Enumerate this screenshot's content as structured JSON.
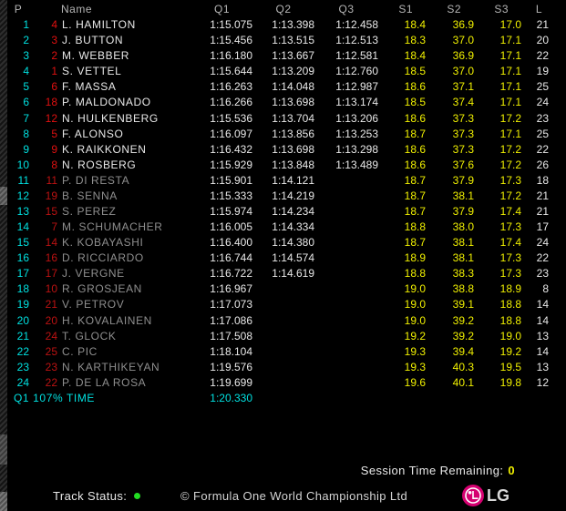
{
  "table": {
    "columns": [
      {
        "key": "pos",
        "label": "P"
      },
      {
        "key": "num",
        "label": ""
      },
      {
        "key": "name",
        "label": "Name"
      },
      {
        "key": "q1",
        "label": "Q1"
      },
      {
        "key": "q2",
        "label": "Q2"
      },
      {
        "key": "q3",
        "label": "Q3"
      },
      {
        "key": "s1",
        "label": "S1"
      },
      {
        "key": "s2",
        "label": "S2"
      },
      {
        "key": "s3",
        "label": "S3"
      },
      {
        "key": "l",
        "label": "L"
      }
    ],
    "rows": [
      {
        "pos": "1",
        "num": "4",
        "name": "L. HAMILTON",
        "q1": "1:15.075",
        "q2": "1:13.398",
        "q3": "1:12.458",
        "s1": "18.4",
        "s2": "36.9",
        "s3": "17.0",
        "l": "21",
        "dim": false
      },
      {
        "pos": "2",
        "num": "3",
        "name": "J. BUTTON",
        "q1": "1:15.456",
        "q2": "1:13.515",
        "q3": "1:12.513",
        "s1": "18.3",
        "s2": "37.0",
        "s3": "17.1",
        "l": "20",
        "dim": false
      },
      {
        "pos": "3",
        "num": "2",
        "name": "M. WEBBER",
        "q1": "1:16.180",
        "q2": "1:13.667",
        "q3": "1:12.581",
        "s1": "18.4",
        "s2": "36.9",
        "s3": "17.1",
        "l": "22",
        "dim": false
      },
      {
        "pos": "4",
        "num": "1",
        "name": "S. VETTEL",
        "q1": "1:15.644",
        "q2": "1:13.209",
        "q3": "1:12.760",
        "s1": "18.5",
        "s2": "37.0",
        "s3": "17.1",
        "l": "19",
        "dim": false
      },
      {
        "pos": "5",
        "num": "6",
        "name": "F. MASSA",
        "q1": "1:16.263",
        "q2": "1:14.048",
        "q3": "1:12.987",
        "s1": "18.6",
        "s2": "37.1",
        "s3": "17.1",
        "l": "25",
        "dim": false
      },
      {
        "pos": "6",
        "num": "18",
        "name": "P. MALDONADO",
        "q1": "1:16.266",
        "q2": "1:13.698",
        "q3": "1:13.174",
        "s1": "18.5",
        "s2": "37.4",
        "s3": "17.1",
        "l": "24",
        "dim": false
      },
      {
        "pos": "7",
        "num": "12",
        "name": "N. HULKENBERG",
        "q1": "1:15.536",
        "q2": "1:13.704",
        "q3": "1:13.206",
        "s1": "18.6",
        "s2": "37.3",
        "s3": "17.2",
        "l": "23",
        "dim": false
      },
      {
        "pos": "8",
        "num": "5",
        "name": "F. ALONSO",
        "q1": "1:16.097",
        "q2": "1:13.856",
        "q3": "1:13.253",
        "s1": "18.7",
        "s2": "37.3",
        "s3": "17.1",
        "l": "25",
        "dim": false
      },
      {
        "pos": "9",
        "num": "9",
        "name": "K. RAIKKONEN",
        "q1": "1:16.432",
        "q2": "1:13.698",
        "q3": "1:13.298",
        "s1": "18.6",
        "s2": "37.3",
        "s3": "17.2",
        "l": "22",
        "dim": false
      },
      {
        "pos": "10",
        "num": "8",
        "name": "N. ROSBERG",
        "q1": "1:15.929",
        "q2": "1:13.848",
        "q3": "1:13.489",
        "s1": "18.6",
        "s2": "37.6",
        "s3": "17.2",
        "l": "26",
        "dim": false
      },
      {
        "pos": "11",
        "num": "11",
        "name": "P. DI RESTA",
        "q1": "1:15.901",
        "q2": "1:14.121",
        "q3": "",
        "s1": "18.7",
        "s2": "37.9",
        "s3": "17.3",
        "l": "18",
        "dim": true
      },
      {
        "pos": "12",
        "num": "19",
        "name": "B. SENNA",
        "q1": "1:15.333",
        "q2": "1:14.219",
        "q3": "",
        "s1": "18.7",
        "s2": "38.1",
        "s3": "17.2",
        "l": "21",
        "dim": true
      },
      {
        "pos": "13",
        "num": "15",
        "name": "S. PEREZ",
        "q1": "1:15.974",
        "q2": "1:14.234",
        "q3": "",
        "s1": "18.7",
        "s2": "37.9",
        "s3": "17.4",
        "l": "21",
        "dim": true
      },
      {
        "pos": "14",
        "num": "7",
        "name": "M. SCHUMACHER",
        "q1": "1:16.005",
        "q2": "1:14.334",
        "q3": "",
        "s1": "18.8",
        "s2": "38.0",
        "s3": "17.3",
        "l": "17",
        "dim": true
      },
      {
        "pos": "15",
        "num": "14",
        "name": "K. KOBAYASHI",
        "q1": "1:16.400",
        "q2": "1:14.380",
        "q3": "",
        "s1": "18.7",
        "s2": "38.1",
        "s3": "17.4",
        "l": "24",
        "dim": true
      },
      {
        "pos": "16",
        "num": "16",
        "name": "D. RICCIARDO",
        "q1": "1:16.744",
        "q2": "1:14.574",
        "q3": "",
        "s1": "18.9",
        "s2": "38.1",
        "s3": "17.3",
        "l": "22",
        "dim": true
      },
      {
        "pos": "17",
        "num": "17",
        "name": "J. VERGNE",
        "q1": "1:16.722",
        "q2": "1:14.619",
        "q3": "",
        "s1": "18.8",
        "s2": "38.3",
        "s3": "17.3",
        "l": "23",
        "dim": true
      },
      {
        "pos": "18",
        "num": "10",
        "name": "R. GROSJEAN",
        "q1": "1:16.967",
        "q2": "",
        "q3": "",
        "s1": "19.0",
        "s2": "38.8",
        "s3": "18.9",
        "l": "8",
        "dim": true
      },
      {
        "pos": "19",
        "num": "21",
        "name": "V. PETROV",
        "q1": "1:17.073",
        "q2": "",
        "q3": "",
        "s1": "19.0",
        "s2": "39.1",
        "s3": "18.8",
        "l": "14",
        "dim": true
      },
      {
        "pos": "20",
        "num": "20",
        "name": "H. KOVALAINEN",
        "q1": "1:17.086",
        "q2": "",
        "q3": "",
        "s1": "19.0",
        "s2": "39.2",
        "s3": "18.8",
        "l": "14",
        "dim": true
      },
      {
        "pos": "21",
        "num": "24",
        "name": "T. GLOCK",
        "q1": "1:17.508",
        "q2": "",
        "q3": "",
        "s1": "19.2",
        "s2": "39.2",
        "s3": "19.0",
        "l": "13",
        "dim": true
      },
      {
        "pos": "22",
        "num": "25",
        "name": "C. PIC",
        "q1": "1:18.104",
        "q2": "",
        "q3": "",
        "s1": "19.3",
        "s2": "39.4",
        "s3": "19.2",
        "l": "14",
        "dim": true
      },
      {
        "pos": "23",
        "num": "23",
        "name": "N. KARTHIKEYAN",
        "q1": "1:19.576",
        "q2": "",
        "q3": "",
        "s1": "19.3",
        "s2": "40.3",
        "s3": "19.5",
        "l": "13",
        "dim": true
      },
      {
        "pos": "24",
        "num": "22",
        "name": "P. DE LA ROSA",
        "q1": "1:19.699",
        "q2": "",
        "q3": "",
        "s1": "19.6",
        "s2": "40.1",
        "s3": "19.8",
        "l": "12",
        "dim": true
      }
    ],
    "cutoff": {
      "label": "Q1 107% TIME",
      "value": "1:20.330"
    }
  },
  "footer": {
    "session_time_label": "Session Time Remaining:",
    "session_time_value": "0",
    "track_status_label": "Track Status:",
    "copyright": "© Formula One World Championship Ltd",
    "lg_text": "LG"
  },
  "colors": {
    "position_cyan": "#00e0e0",
    "car_number_red": "#e01010",
    "sector_yellow": "#f0f000",
    "time_white": "#e8e8e8",
    "eliminated_gray": "#8f8f8f",
    "header_gray": "#b4b4b4",
    "track_status_green": "#22dd22",
    "lg_magenta": "#d50070"
  }
}
